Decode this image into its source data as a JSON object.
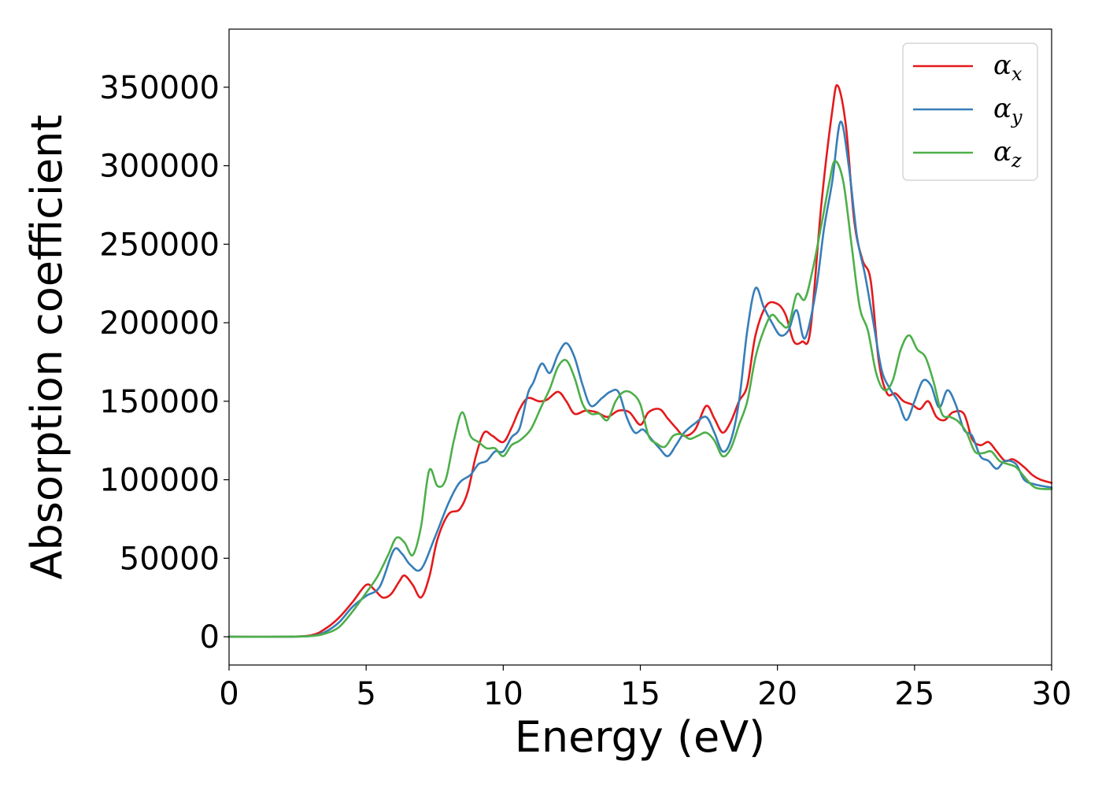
{
  "chart_data": {
    "type": "line",
    "xlabel": "Energy (eV)",
    "ylabel": "Absorption coefficient",
    "xlim": [
      0,
      30
    ],
    "ylim": [
      -18000,
      387000
    ],
    "x_ticks": [
      0,
      5,
      10,
      15,
      20,
      25,
      30
    ],
    "y_ticks": [
      0,
      50000,
      100000,
      150000,
      200000,
      250000,
      300000,
      350000
    ],
    "grid": false,
    "legend_position": "top-right",
    "series": [
      {
        "name": "α",
        "sub": "x",
        "color": "#e41a1c",
        "points": [
          [
            0,
            0
          ],
          [
            2,
            0
          ],
          [
            3,
            1000
          ],
          [
            3.5,
            5000
          ],
          [
            4,
            12000
          ],
          [
            4.5,
            22000
          ],
          [
            5,
            33000
          ],
          [
            5.3,
            30000
          ],
          [
            5.6,
            25000
          ],
          [
            5.9,
            27000
          ],
          [
            6.2,
            35000
          ],
          [
            6.4,
            39000
          ],
          [
            6.7,
            33000
          ],
          [
            7,
            25000
          ],
          [
            7.3,
            38000
          ],
          [
            7.6,
            62000
          ],
          [
            8,
            78000
          ],
          [
            8.4,
            81000
          ],
          [
            8.7,
            92000
          ],
          [
            9,
            115000
          ],
          [
            9.3,
            130000
          ],
          [
            9.6,
            128000
          ],
          [
            10,
            124000
          ],
          [
            10.3,
            133000
          ],
          [
            10.6,
            145000
          ],
          [
            10.9,
            152000
          ],
          [
            11.3,
            150000
          ],
          [
            11.6,
            151000
          ],
          [
            12,
            156000
          ],
          [
            12.3,
            150000
          ],
          [
            12.6,
            142000
          ],
          [
            13,
            144000
          ],
          [
            13.4,
            143000
          ],
          [
            13.8,
            140000
          ],
          [
            14.2,
            144000
          ],
          [
            14.6,
            143000
          ],
          [
            15,
            135000
          ],
          [
            15.3,
            143000
          ],
          [
            15.7,
            145000
          ],
          [
            16,
            139000
          ],
          [
            16.3,
            133000
          ],
          [
            16.6,
            128000
          ],
          [
            17,
            132000
          ],
          [
            17.4,
            147000
          ],
          [
            17.7,
            139000
          ],
          [
            18,
            130000
          ],
          [
            18.3,
            137000
          ],
          [
            18.6,
            150000
          ],
          [
            18.9,
            160000
          ],
          [
            19.2,
            192000
          ],
          [
            19.6,
            211000
          ],
          [
            20,
            212000
          ],
          [
            20.3,
            205000
          ],
          [
            20.6,
            188000
          ],
          [
            20.9,
            188000
          ],
          [
            21.2,
            195000
          ],
          [
            21.6,
            275000
          ],
          [
            22,
            335000
          ],
          [
            22.2,
            351000
          ],
          [
            22.5,
            325000
          ],
          [
            22.8,
            265000
          ],
          [
            23.1,
            240000
          ],
          [
            23.4,
            227000
          ],
          [
            23.7,
            175000
          ],
          [
            24,
            155000
          ],
          [
            24.3,
            155000
          ],
          [
            24.6,
            150000
          ],
          [
            24.9,
            148000
          ],
          [
            25.2,
            145000
          ],
          [
            25.5,
            150000
          ],
          [
            25.8,
            140000
          ],
          [
            26.1,
            138000
          ],
          [
            26.4,
            143000
          ],
          [
            26.8,
            142000
          ],
          [
            27.1,
            126000
          ],
          [
            27.4,
            122000
          ],
          [
            27.7,
            124000
          ],
          [
            28,
            118000
          ],
          [
            28.3,
            112000
          ],
          [
            28.6,
            113000
          ],
          [
            29,
            108000
          ],
          [
            29.3,
            103000
          ],
          [
            29.6,
            100000
          ],
          [
            30,
            98000
          ]
        ]
      },
      {
        "name": "α",
        "sub": "y",
        "color": "#377eb8",
        "points": [
          [
            0,
            0
          ],
          [
            2,
            0
          ],
          [
            3,
            500
          ],
          [
            3.5,
            3000
          ],
          [
            4,
            9000
          ],
          [
            4.5,
            19000
          ],
          [
            5,
            26000
          ],
          [
            5.5,
            32000
          ],
          [
            6,
            55000
          ],
          [
            6.3,
            53000
          ],
          [
            6.6,
            46000
          ],
          [
            7,
            43000
          ],
          [
            7.5,
            63000
          ],
          [
            8,
            85000
          ],
          [
            8.4,
            98000
          ],
          [
            8.8,
            103000
          ],
          [
            9.1,
            110000
          ],
          [
            9.4,
            112000
          ],
          [
            9.7,
            118000
          ],
          [
            10,
            118000
          ],
          [
            10.3,
            127000
          ],
          [
            10.6,
            133000
          ],
          [
            10.9,
            155000
          ],
          [
            11.1,
            162000
          ],
          [
            11.4,
            174000
          ],
          [
            11.7,
            168000
          ],
          [
            12,
            180000
          ],
          [
            12.3,
            187000
          ],
          [
            12.6,
            178000
          ],
          [
            12.9,
            160000
          ],
          [
            13.2,
            147000
          ],
          [
            13.6,
            152000
          ],
          [
            13.9,
            156000
          ],
          [
            14.2,
            156000
          ],
          [
            14.5,
            140000
          ],
          [
            14.8,
            130000
          ],
          [
            15.1,
            132000
          ],
          [
            15.4,
            126000
          ],
          [
            15.7,
            120000
          ],
          [
            16,
            115000
          ],
          [
            16.3,
            122000
          ],
          [
            16.6,
            130000
          ],
          [
            17,
            136000
          ],
          [
            17.4,
            140000
          ],
          [
            17.7,
            130000
          ],
          [
            18,
            118000
          ],
          [
            18.3,
            125000
          ],
          [
            18.6,
            150000
          ],
          [
            18.9,
            195000
          ],
          [
            19.2,
            222000
          ],
          [
            19.5,
            210000
          ],
          [
            19.8,
            200000
          ],
          [
            20.1,
            192000
          ],
          [
            20.4,
            195000
          ],
          [
            20.7,
            208000
          ],
          [
            21,
            190000
          ],
          [
            21.4,
            220000
          ],
          [
            21.7,
            260000
          ],
          [
            22,
            290000
          ],
          [
            22.3,
            328000
          ],
          [
            22.6,
            300000
          ],
          [
            22.9,
            255000
          ],
          [
            23.2,
            230000
          ],
          [
            23.5,
            200000
          ],
          [
            23.8,
            170000
          ],
          [
            24.1,
            158000
          ],
          [
            24.4,
            150000
          ],
          [
            24.7,
            138000
          ],
          [
            25,
            150000
          ],
          [
            25.3,
            163000
          ],
          [
            25.6,
            160000
          ],
          [
            25.9,
            146000
          ],
          [
            26.2,
            157000
          ],
          [
            26.5,
            148000
          ],
          [
            26.8,
            132000
          ],
          [
            27.1,
            128000
          ],
          [
            27.4,
            115000
          ],
          [
            27.7,
            112000
          ],
          [
            28,
            107000
          ],
          [
            28.3,
            112000
          ],
          [
            28.7,
            110000
          ],
          [
            29,
            100000
          ],
          [
            29.4,
            97000
          ],
          [
            30,
            95000
          ]
        ]
      },
      {
        "name": "α",
        "sub": "z",
        "color": "#4daf4a",
        "points": [
          [
            0,
            0
          ],
          [
            2,
            0
          ],
          [
            3,
            500
          ],
          [
            3.5,
            2000
          ],
          [
            4,
            6000
          ],
          [
            4.5,
            16000
          ],
          [
            5,
            28000
          ],
          [
            5.4,
            38000
          ],
          [
            5.8,
            52000
          ],
          [
            6.1,
            63000
          ],
          [
            6.4,
            60000
          ],
          [
            6.7,
            52000
          ],
          [
            7,
            70000
          ],
          [
            7.3,
            106000
          ],
          [
            7.6,
            96000
          ],
          [
            7.9,
            100000
          ],
          [
            8.2,
            125000
          ],
          [
            8.5,
            143000
          ],
          [
            8.8,
            128000
          ],
          [
            9.1,
            124000
          ],
          [
            9.4,
            120000
          ],
          [
            9.7,
            120000
          ],
          [
            10,
            115000
          ],
          [
            10.3,
            122000
          ],
          [
            10.6,
            125000
          ],
          [
            11,
            132000
          ],
          [
            11.4,
            147000
          ],
          [
            11.7,
            158000
          ],
          [
            12,
            172000
          ],
          [
            12.3,
            176000
          ],
          [
            12.6,
            165000
          ],
          [
            12.9,
            148000
          ],
          [
            13.2,
            142000
          ],
          [
            13.5,
            142000
          ],
          [
            13.8,
            138000
          ],
          [
            14.1,
            150000
          ],
          [
            14.4,
            156000
          ],
          [
            14.7,
            155000
          ],
          [
            15,
            148000
          ],
          [
            15.3,
            128000
          ],
          [
            15.6,
            123000
          ],
          [
            15.9,
            121000
          ],
          [
            16.2,
            128000
          ],
          [
            16.5,
            129000
          ],
          [
            16.8,
            126000
          ],
          [
            17.1,
            128000
          ],
          [
            17.4,
            130000
          ],
          [
            17.7,
            125000
          ],
          [
            18,
            115000
          ],
          [
            18.3,
            120000
          ],
          [
            18.6,
            135000
          ],
          [
            18.9,
            150000
          ],
          [
            19.2,
            178000
          ],
          [
            19.5,
            195000
          ],
          [
            19.8,
            205000
          ],
          [
            20.1,
            200000
          ],
          [
            20.4,
            198000
          ],
          [
            20.7,
            218000
          ],
          [
            21,
            215000
          ],
          [
            21.3,
            235000
          ],
          [
            21.6,
            262000
          ],
          [
            21.9,
            290000
          ],
          [
            22.1,
            303000
          ],
          [
            22.4,
            290000
          ],
          [
            22.7,
            250000
          ],
          [
            23,
            210000
          ],
          [
            23.3,
            195000
          ],
          [
            23.6,
            168000
          ],
          [
            23.9,
            157000
          ],
          [
            24.2,
            163000
          ],
          [
            24.5,
            183000
          ],
          [
            24.8,
            192000
          ],
          [
            25.1,
            183000
          ],
          [
            25.4,
            178000
          ],
          [
            25.7,
            162000
          ],
          [
            26,
            142000
          ],
          [
            26.3,
            140000
          ],
          [
            26.6,
            137000
          ],
          [
            26.9,
            130000
          ],
          [
            27.2,
            118000
          ],
          [
            27.5,
            117000
          ],
          [
            27.8,
            118000
          ],
          [
            28.1,
            112000
          ],
          [
            28.4,
            110000
          ],
          [
            28.7,
            108000
          ],
          [
            29,
            102000
          ],
          [
            29.4,
            95000
          ],
          [
            30,
            94000
          ]
        ]
      }
    ]
  }
}
